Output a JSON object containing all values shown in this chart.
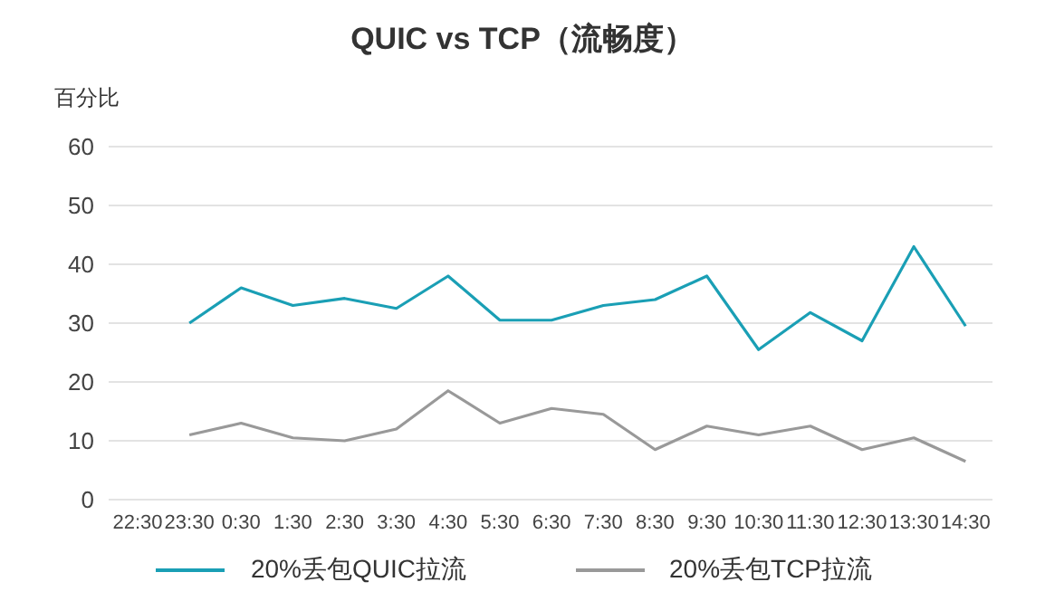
{
  "chart_data": {
    "type": "line",
    "title": "QUIC vs TCP（流畅度）",
    "ylabel": "百分比",
    "categories": [
      "22:30",
      "23:30",
      "0:30",
      "1:30",
      "2:30",
      "3:30",
      "4:30",
      "5:30",
      "6:30",
      "7:30",
      "8:30",
      "9:30",
      "10:30",
      "11:30",
      "12:30",
      "13:30",
      "14:30"
    ],
    "series": [
      {
        "name": "20%丢包QUIC拉流",
        "color": "#1a9fb5",
        "values": [
          null,
          30,
          36,
          33,
          34.2,
          32.5,
          38,
          30.5,
          30.5,
          33,
          34,
          38,
          25.5,
          31.8,
          27,
          43,
          29.5
        ]
      },
      {
        "name": "20%丢包TCP拉流",
        "color": "#999999",
        "values": [
          null,
          11,
          13,
          10.5,
          10,
          12,
          18.5,
          13,
          15.5,
          14.5,
          8.5,
          12.5,
          11,
          12.5,
          8.5,
          10.5,
          6.5
        ]
      }
    ],
    "ylim": [
      0,
      60
    ],
    "yticks": [
      0,
      10,
      20,
      30,
      40,
      50,
      60
    ],
    "grid": "y",
    "legend": "bottom",
    "marker": "none",
    "line_style": "solid"
  }
}
